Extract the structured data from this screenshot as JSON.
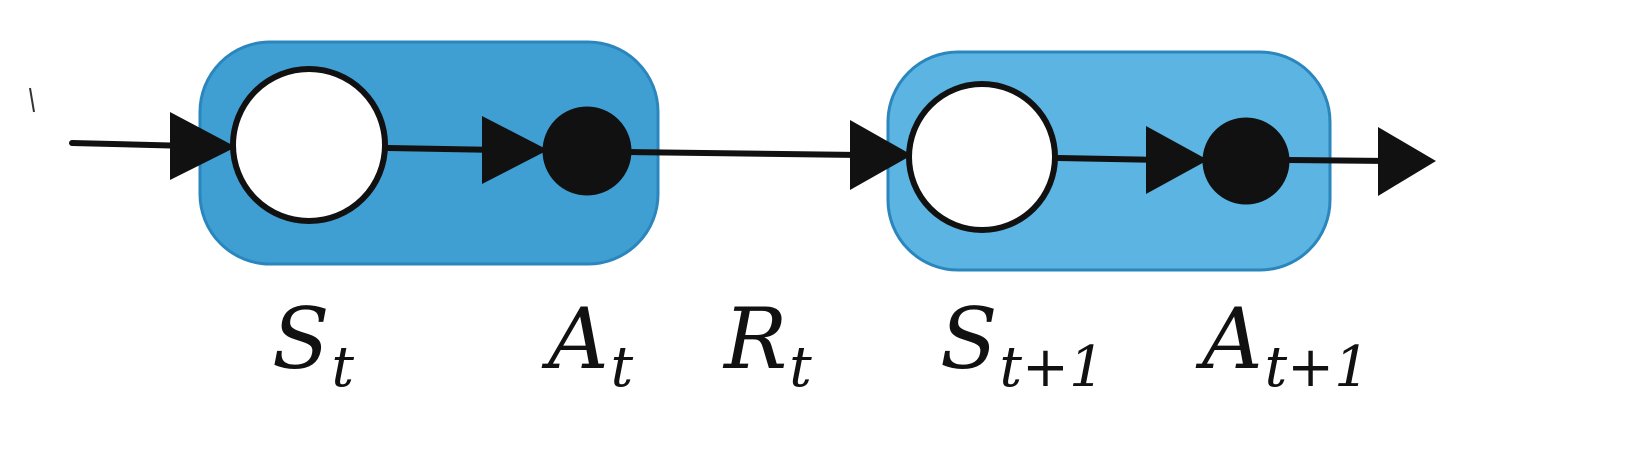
{
  "colors": {
    "group_fill": "#3f9fd3",
    "group_fill_2": "#5bb4e2",
    "group_edge": "#2a86bd",
    "state_node_fill": "#ffffff",
    "action_node_fill": "#111111",
    "stroke": "#111111"
  },
  "labels": {
    "s_t": {
      "main": "S",
      "sub": "t"
    },
    "a_t": {
      "main": "A",
      "sub": "t"
    },
    "r_t": {
      "main": "R",
      "sub": "t"
    },
    "s_t1": {
      "main": "S",
      "sub": "t+1"
    },
    "a_t1": {
      "main": "A",
      "sub": "t+1"
    }
  }
}
